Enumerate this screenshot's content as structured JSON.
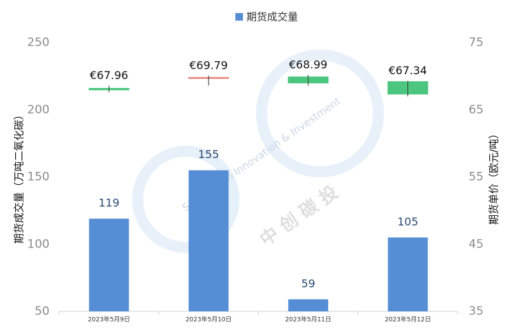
{
  "chart_data": {
    "type": "bar",
    "categories": [
      "2023年5月9日",
      "2023年5月10日",
      "2023年5月11日",
      "2023年5月12日"
    ],
    "ylabel": "期货成交量（万吨二氧化碳）",
    "y2label": "期货单价（欧元/吨）",
    "ylim": [
      50,
      250
    ],
    "yticks": [
      50,
      100,
      150,
      200,
      250
    ],
    "y2lim": [
      35,
      75
    ],
    "y2ticks": [
      35,
      45,
      55,
      65,
      75
    ],
    "legend": "top",
    "watermark": {
      "text": "SinoCarbon Innovation & Investment",
      "logo": "中 创 碳 投"
    },
    "series": [
      {
        "name": "期货成交量",
        "type": "bar",
        "color": "#558ed5",
        "values": [
          119,
          155,
          59,
          105
        ]
      },
      {
        "type": "candlestick",
        "axis": "y2",
        "colors": [
          "#4cc67f",
          "#e0645a",
          "#4cc67f",
          "#4cc67f"
        ],
        "open": [
          68.2,
          69.79,
          69.9,
          69.2
        ],
        "high": [
          68.6,
          70.1,
          70.2,
          69.3
        ],
        "low": [
          67.6,
          68.6,
          68.6,
          67.0
        ],
        "values": [
          67.96,
          69.79,
          68.99,
          67.34
        ],
        "value_labels": [
          "€67.96",
          "€69.79",
          "€68.99",
          "€67.34"
        ]
      }
    ]
  }
}
